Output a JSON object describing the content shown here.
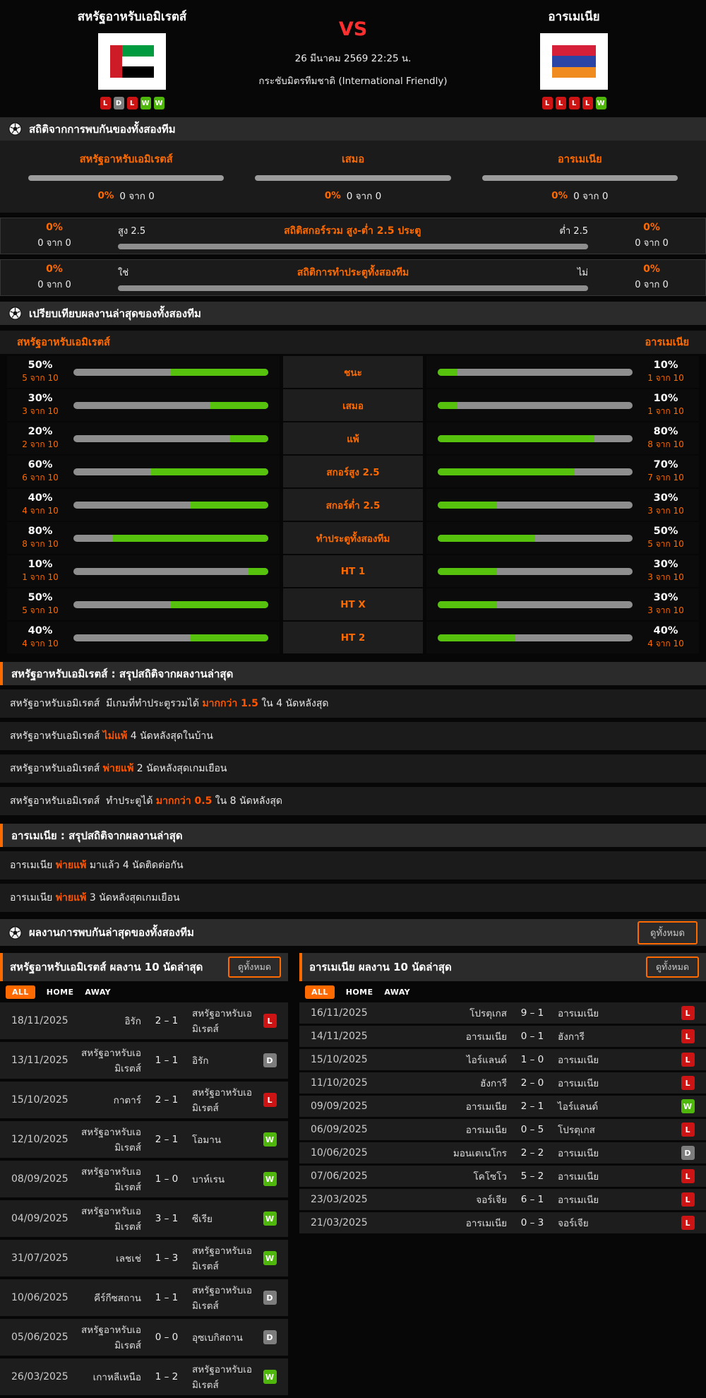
{
  "colors": {
    "accent": "#ff6a00",
    "highlight": "#ff5500",
    "win": "#4fb60b",
    "loss": "#cc1414",
    "draw": "#7d7d7d",
    "bar_gray": "#8e8e8e",
    "bar_green": "#57c20e",
    "vs_red": "#ff2f2f"
  },
  "header": {
    "home_name": "สหรัฐอาหรับเอมิเรตส์",
    "away_name": "อารเมเนีย",
    "vs": "VS",
    "datetime": "26 มีนาคม 2569 22:25 น.",
    "competition": "กระชับมิตรทีมชาติ (International Friendly)",
    "home_form": [
      "L",
      "D",
      "L",
      "W",
      "W"
    ],
    "away_form": [
      "L",
      "L",
      "L",
      "L",
      "W"
    ]
  },
  "h2h": {
    "title": "สถิติจากการพบกันของทั้งสองทีม",
    "columns": [
      {
        "label": "สหรัฐอาหรับเอมิเรตส์",
        "pct": "0%",
        "count": "0 จาก 0"
      },
      {
        "label": "เสมอ",
        "pct": "0%",
        "count": "0 จาก 0"
      },
      {
        "label": "อารเมเนีย",
        "pct": "0%",
        "count": "0 จาก 0"
      }
    ],
    "stat_rows": [
      {
        "title": "สถิติสกอร์รวม สูง-ต่ำ 2.5 ประตู",
        "left_label": "สูง 2.5",
        "right_label": "ต่ำ 2.5",
        "left_pct": "0%",
        "left_count": "0 จาก 0",
        "right_pct": "0%",
        "right_count": "0 จาก 0"
      },
      {
        "title": "สถิติการทำประตูทั้งสองทีม",
        "left_label": "ใช่",
        "right_label": "ไม่",
        "left_pct": "0%",
        "left_count": "0 จาก 0",
        "right_pct": "0%",
        "right_count": "0 จาก 0"
      }
    ]
  },
  "comparison": {
    "title": "เปรียบเทียบผลงานล่าสุดของทั้งสองทีม",
    "home_label": "สหรัฐอาหรับเอมิเรตส์",
    "away_label": "อารเมเนีย",
    "rows": [
      {
        "label": "ชนะ",
        "home_pct": 50,
        "home_count": "5 จาก 10",
        "away_pct": 10,
        "away_count": "1 จาก 10"
      },
      {
        "label": "เสมอ",
        "home_pct": 30,
        "home_count": "3 จาก 10",
        "away_pct": 10,
        "away_count": "1 จาก 10"
      },
      {
        "label": "แพ้",
        "home_pct": 20,
        "home_count": "2 จาก 10",
        "away_pct": 80,
        "away_count": "8 จาก 10"
      },
      {
        "label": "สกอร์สูง 2.5",
        "home_pct": 60,
        "home_count": "6 จาก 10",
        "away_pct": 70,
        "away_count": "7 จาก 10"
      },
      {
        "label": "สกอร์ต่ำ 2.5",
        "home_pct": 40,
        "home_count": "4 จาก 10",
        "away_pct": 30,
        "away_count": "3 จาก 10"
      },
      {
        "label": "ทำประตูทั้งสองทีม",
        "home_pct": 80,
        "home_count": "8 จาก 10",
        "away_pct": 50,
        "away_count": "5 จาก 10"
      },
      {
        "label": "HT 1",
        "home_pct": 10,
        "home_count": "1 จาก 10",
        "away_pct": 30,
        "away_count": "3 จาก 10"
      },
      {
        "label": "HT X",
        "home_pct": 50,
        "home_count": "5 จาก 10",
        "away_pct": 30,
        "away_count": "3 จาก 10"
      },
      {
        "label": "HT 2",
        "home_pct": 40,
        "home_count": "4 จาก 10",
        "away_pct": 40,
        "away_count": "4 จาก 10"
      }
    ]
  },
  "summaries": [
    {
      "title": "สหรัฐอาหรับเอมิเรตส์ : สรุปสถิติจากผลงานล่าสุด",
      "items": [
        {
          "pre": "สหรัฐอาหรับเอมิเรตส์  มีเกมที่ทำประตูรวมได้ ",
          "highlight": "มากกว่า 1.5",
          "post": " ใน 4 นัดหลังสุด"
        },
        {
          "pre": "สหรัฐอาหรับเอมิเรตส์ ",
          "highlight": "ไม่แพ้",
          "post": " 4 นัดหลังสุดในบ้าน"
        },
        {
          "pre": "สหรัฐอาหรับเอมิเรตส์ ",
          "highlight": "พ่ายแพ้",
          "post": " 2 นัดหลังสุดเกมเยือน"
        },
        {
          "pre": "สหรัฐอาหรับเอมิเรตส์  ทำประตูได้ ",
          "highlight": "มากกว่า 0.5",
          "post": " ใน 8 นัดหลังสุด"
        }
      ]
    },
    {
      "title": "อารเมเนีย : สรุปสถิติจากผลงานล่าสุด",
      "items": [
        {
          "pre": "อารเมเนีย ",
          "highlight": "พ่ายแพ้",
          "post": " มาแล้ว 4 นัดติดต่อกัน"
        },
        {
          "pre": "อารเมเนีย ",
          "highlight": "พ่ายแพ้",
          "post": " 3 นัดหลังสุดเกมเยือน"
        }
      ]
    }
  ],
  "recent_header": {
    "title": "ผลงานการพบกันล่าสุดของทั้งสองทีม",
    "view_all": "ดูทั้งหมด"
  },
  "tables": [
    {
      "title": "สหรัฐอาหรับเอมิเรตส์ ผลงาน 10 นัดล่าสุด",
      "view_all": "ดูทั้งหมด",
      "tabs": [
        "ALL",
        "HOME",
        "AWAY"
      ],
      "active_tab": "ALL",
      "rows": [
        {
          "date": "18/11/2025",
          "home": "อิรัก",
          "score": "2 – 1",
          "away": "สหรัฐอาหรับเอมิเรตส์",
          "result": "L"
        },
        {
          "date": "13/11/2025",
          "home": "สหรัฐอาหรับเอมิเรตส์",
          "score": "1 – 1",
          "away": "อิรัก",
          "result": "D"
        },
        {
          "date": "15/10/2025",
          "home": "กาตาร์",
          "score": "2 – 1",
          "away": "สหรัฐอาหรับเอมิเรตส์",
          "result": "L"
        },
        {
          "date": "12/10/2025",
          "home": "สหรัฐอาหรับเอมิเรตส์",
          "score": "2 – 1",
          "away": "โอมาน",
          "result": "W"
        },
        {
          "date": "08/09/2025",
          "home": "สหรัฐอาหรับเอมิเรตส์",
          "score": "1 – 0",
          "away": "บาห์เรน",
          "result": "W"
        },
        {
          "date": "04/09/2025",
          "home": "สหรัฐอาหรับเอมิเรตส์",
          "score": "3 – 1",
          "away": "ซีเรีย",
          "result": "W"
        },
        {
          "date": "31/07/2025",
          "home": "เลชเช่",
          "score": "1 – 3",
          "away": "สหรัฐอาหรับเอมิเรตส์",
          "result": "W"
        },
        {
          "date": "10/06/2025",
          "home": "คีร์กีซสถาน",
          "score": "1 – 1",
          "away": "สหรัฐอาหรับเอมิเรตส์",
          "result": "D"
        },
        {
          "date": "05/06/2025",
          "home": "สหรัฐอาหรับเอมิเรตส์",
          "score": "0 – 0",
          "away": "อุซเบกิสถาน",
          "result": "D"
        },
        {
          "date": "26/03/2025",
          "home": "เกาหลีเหนือ",
          "score": "1 – 2",
          "away": "สหรัฐอาหรับเอมิเรตส์",
          "result": "W"
        }
      ]
    },
    {
      "title": "อารเมเนีย ผลงาน 10 นัดล่าสุด",
      "view_all": "ดูทั้งหมด",
      "tabs": [
        "ALL",
        "HOME",
        "AWAY"
      ],
      "active_tab": "ALL",
      "rows": [
        {
          "date": "16/11/2025",
          "home": "โปรตุเกส",
          "score": "9 – 1",
          "away": "อารเมเนีย",
          "result": "L"
        },
        {
          "date": "14/11/2025",
          "home": "อารเมเนีย",
          "score": "0 – 1",
          "away": "ฮังการี",
          "result": "L"
        },
        {
          "date": "15/10/2025",
          "home": "ไอร์แลนด์",
          "score": "1 – 0",
          "away": "อารเมเนีย",
          "result": "L"
        },
        {
          "date": "11/10/2025",
          "home": "ฮังการี",
          "score": "2 – 0",
          "away": "อารเมเนีย",
          "result": "L"
        },
        {
          "date": "09/09/2025",
          "home": "อารเมเนีย",
          "score": "2 – 1",
          "away": "ไอร์แลนด์",
          "result": "W"
        },
        {
          "date": "06/09/2025",
          "home": "อารเมเนีย",
          "score": "0 – 5",
          "away": "โปรตุเกส",
          "result": "L"
        },
        {
          "date": "10/06/2025",
          "home": "มอนเตเนโกร",
          "score": "2 – 2",
          "away": "อารเมเนีย",
          "result": "D"
        },
        {
          "date": "07/06/2025",
          "home": "โคโซโว",
          "score": "5 – 2",
          "away": "อารเมเนีย",
          "result": "L"
        },
        {
          "date": "23/03/2025",
          "home": "จอร์เจีย",
          "score": "6 – 1",
          "away": "อารเมเนีย",
          "result": "L"
        },
        {
          "date": "21/03/2025",
          "home": "อารเมเนีย",
          "score": "0 – 3",
          "away": "จอร์เจีย",
          "result": "L"
        }
      ]
    }
  ]
}
